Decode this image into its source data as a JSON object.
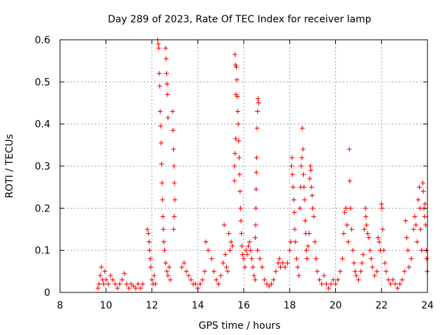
{
  "chart_data": {
    "type": "scatter",
    "title": "Day 289 of 2023, Rate Of TEC Index for receiver lamp",
    "xlabel": "GPS time / hours",
    "ylabel": "ROTI / TECUs",
    "xlim": [
      8,
      24
    ],
    "ylim": [
      0,
      0.6
    ],
    "xticks": [
      8,
      10,
      12,
      14,
      16,
      18,
      20,
      22,
      24
    ],
    "yticks": [
      0,
      0.1,
      0.2,
      0.3,
      0.4,
      0.5,
      0.6
    ],
    "xtick_labels": [
      "8",
      "10",
      "12",
      "14",
      "16",
      "18",
      "20",
      "22",
      "24"
    ],
    "ytick_labels": [
      "0",
      "0.1",
      "0.2",
      "0.3",
      "0.4",
      "0.5",
      "0.6"
    ],
    "grid": true,
    "marker": "+",
    "color": "#ff0000",
    "series": [
      {
        "name": "ROTI",
        "points": [
          [
            9.65,
            0.01
          ],
          [
            9.7,
            0.02
          ],
          [
            9.75,
            0.04
          ],
          [
            9.8,
            0.06
          ],
          [
            9.85,
            0.03
          ],
          [
            9.9,
            0.02
          ],
          [
            9.95,
            0.05
          ],
          [
            10.0,
            0.03
          ],
          [
            10.1,
            0.02
          ],
          [
            10.2,
            0.04
          ],
          [
            10.3,
            0.03
          ],
          [
            10.4,
            0.02
          ],
          [
            10.5,
            0.01
          ],
          [
            10.6,
            0.02
          ],
          [
            10.7,
            0.03
          ],
          [
            10.8,
            0.045
          ],
          [
            10.9,
            0.02
          ],
          [
            11.0,
            0.01
          ],
          [
            11.1,
            0.02
          ],
          [
            11.2,
            0.015
          ],
          [
            11.3,
            0.01
          ],
          [
            11.4,
            0.02
          ],
          [
            11.5,
            0.01
          ],
          [
            11.6,
            0.02
          ],
          [
            11.8,
            0.15
          ],
          [
            11.85,
            0.14
          ],
          [
            11.88,
            0.12
          ],
          [
            11.9,
            0.1
          ],
          [
            11.93,
            0.08
          ],
          [
            11.95,
            0.06
          ],
          [
            12.0,
            0.03
          ],
          [
            12.05,
            0.02
          ],
          [
            12.1,
            0.04
          ],
          [
            12.15,
            0.02
          ],
          [
            12.25,
            0.6
          ],
          [
            12.28,
            0.59
          ],
          [
            12.3,
            0.58
          ],
          [
            12.32,
            0.52
          ],
          [
            12.34,
            0.49
          ],
          [
            12.36,
            0.43
          ],
          [
            12.38,
            0.395
          ],
          [
            12.4,
            0.355
          ],
          [
            12.42,
            0.305
          ],
          [
            12.44,
            0.26
          ],
          [
            12.46,
            0.22
          ],
          [
            12.48,
            0.18
          ],
          [
            12.5,
            0.15
          ],
          [
            12.52,
            0.12
          ],
          [
            12.55,
            0.1
          ],
          [
            12.6,
            0.07
          ],
          [
            12.65,
            0.05
          ],
          [
            12.7,
            0.04
          ],
          [
            12.75,
            0.06
          ],
          [
            12.8,
            0.03
          ],
          [
            12.6,
            0.58
          ],
          [
            12.62,
            0.555
          ],
          [
            12.64,
            0.52
          ],
          [
            12.66,
            0.495
          ],
          [
            12.68,
            0.47
          ],
          [
            12.7,
            0.415
          ],
          [
            12.9,
            0.43
          ],
          [
            12.92,
            0.385
          ],
          [
            12.94,
            0.34
          ],
          [
            12.96,
            0.3
          ],
          [
            12.98,
            0.26
          ],
          [
            13.0,
            0.22
          ],
          [
            12.97,
            0.18
          ],
          [
            12.95,
            0.15
          ],
          [
            13.3,
            0.06
          ],
          [
            13.4,
            0.07
          ],
          [
            13.5,
            0.05
          ],
          [
            13.6,
            0.04
          ],
          [
            13.7,
            0.03
          ],
          [
            13.8,
            0.02
          ],
          [
            13.9,
            0.02
          ],
          [
            14.0,
            0.01
          ],
          [
            14.1,
            0.02
          ],
          [
            14.2,
            0.03
          ],
          [
            14.3,
            0.05
          ],
          [
            14.35,
            0.12
          ],
          [
            14.45,
            0.1
          ],
          [
            14.6,
            0.08
          ],
          [
            14.7,
            0.05
          ],
          [
            14.8,
            0.03
          ],
          [
            14.9,
            0.02
          ],
          [
            15.0,
            0.04
          ],
          [
            15.1,
            0.07
          ],
          [
            15.15,
            0.16
          ],
          [
            15.2,
            0.09
          ],
          [
            15.25,
            0.06
          ],
          [
            15.3,
            0.05
          ],
          [
            15.35,
            0.14
          ],
          [
            15.4,
            0.1
          ],
          [
            15.45,
            0.12
          ],
          [
            15.5,
            0.11
          ],
          [
            15.62,
            0.565
          ],
          [
            15.65,
            0.54
          ],
          [
            15.68,
            0.535
          ],
          [
            15.7,
            0.505
          ],
          [
            15.66,
            0.47
          ],
          [
            15.72,
            0.465
          ],
          [
            15.74,
            0.43
          ],
          [
            15.76,
            0.4
          ],
          [
            15.65,
            0.365
          ],
          [
            15.78,
            0.36
          ],
          [
            15.62,
            0.33
          ],
          [
            15.8,
            0.32
          ],
          [
            15.6,
            0.3
          ],
          [
            15.82,
            0.28
          ],
          [
            15.6,
            0.265
          ],
          [
            15.84,
            0.24
          ],
          [
            15.86,
            0.2
          ],
          [
            15.88,
            0.17
          ],
          [
            15.9,
            0.14
          ],
          [
            15.92,
            0.11
          ],
          [
            15.95,
            0.09
          ],
          [
            16.0,
            0.08
          ],
          [
            16.05,
            0.06
          ],
          [
            16.1,
            0.1
          ],
          [
            16.15,
            0.09
          ],
          [
            16.2,
            0.11
          ],
          [
            16.25,
            0.12
          ],
          [
            16.3,
            0.1
          ],
          [
            16.35,
            0.08
          ],
          [
            16.4,
            0.06
          ],
          [
            16.45,
            0.04
          ],
          [
            16.5,
            0.03
          ],
          [
            16.62,
            0.46
          ],
          [
            16.65,
            0.45
          ],
          [
            16.6,
            0.43
          ],
          [
            16.58,
            0.39
          ],
          [
            16.56,
            0.32
          ],
          [
            16.55,
            0.285
          ],
          [
            16.54,
            0.245
          ],
          [
            16.53,
            0.2
          ],
          [
            16.52,
            0.16
          ],
          [
            16.5,
            0.13
          ],
          [
            16.6,
            0.1
          ],
          [
            16.7,
            0.08
          ],
          [
            16.8,
            0.06
          ],
          [
            16.9,
            0.03
          ],
          [
            17.0,
            0.02
          ],
          [
            17.1,
            0.015
          ],
          [
            17.2,
            0.02
          ],
          [
            17.3,
            0.03
          ],
          [
            17.4,
            0.05
          ],
          [
            17.5,
            0.07
          ],
          [
            17.55,
            0.08
          ],
          [
            17.6,
            0.06
          ],
          [
            17.7,
            0.07
          ],
          [
            17.8,
            0.06
          ],
          [
            17.9,
            0.07
          ],
          [
            18.0,
            0.1
          ],
          [
            18.05,
            0.12
          ],
          [
            18.08,
            0.3
          ],
          [
            18.1,
            0.32
          ],
          [
            18.12,
            0.28
          ],
          [
            18.15,
            0.25
          ],
          [
            18.18,
            0.22
          ],
          [
            18.2,
            0.19
          ],
          [
            18.22,
            0.15
          ],
          [
            18.25,
            0.12
          ],
          [
            18.3,
            0.08
          ],
          [
            18.35,
            0.06
          ],
          [
            18.4,
            0.04
          ],
          [
            18.45,
            0.2
          ],
          [
            18.48,
            0.25
          ],
          [
            18.5,
            0.3
          ],
          [
            18.53,
            0.32
          ],
          [
            18.55,
            0.39
          ],
          [
            18.58,
            0.34
          ],
          [
            18.6,
            0.28
          ],
          [
            18.62,
            0.25
          ],
          [
            18.65,
            0.22
          ],
          [
            18.68,
            0.17
          ],
          [
            18.7,
            0.14
          ],
          [
            18.72,
            0.1
          ],
          [
            18.75,
            0.08
          ],
          [
            18.8,
            0.11
          ],
          [
            18.85,
            0.14
          ],
          [
            18.88,
            0.27
          ],
          [
            18.9,
            0.3
          ],
          [
            18.92,
            0.29
          ],
          [
            18.95,
            0.25
          ],
          [
            18.98,
            0.23
          ],
          [
            19.0,
            0.2
          ],
          [
            19.05,
            0.18
          ],
          [
            19.1,
            0.12
          ],
          [
            19.15,
            0.08
          ],
          [
            19.2,
            0.05
          ],
          [
            19.3,
            0.03
          ],
          [
            19.4,
            0.02
          ],
          [
            19.5,
            0.04
          ],
          [
            19.6,
            0.02
          ],
          [
            19.7,
            0.01
          ],
          [
            19.8,
            0.02
          ],
          [
            19.9,
            0.03
          ],
          [
            20.0,
            0.02
          ],
          [
            20.1,
            0.03
          ],
          [
            20.2,
            0.05
          ],
          [
            20.3,
            0.08
          ],
          [
            20.35,
            0.14
          ],
          [
            20.4,
            0.19
          ],
          [
            20.45,
            0.2
          ],
          [
            20.5,
            0.16
          ],
          [
            20.55,
            0.12
          ],
          [
            20.6,
            0.34
          ],
          [
            20.62,
            0.265
          ],
          [
            20.65,
            0.2
          ],
          [
            20.7,
            0.15
          ],
          [
            20.75,
            0.1
          ],
          [
            20.8,
            0.07
          ],
          [
            20.85,
            0.05
          ],
          [
            20.9,
            0.04
          ],
          [
            21.0,
            0.03
          ],
          [
            21.1,
            0.05
          ],
          [
            21.15,
            0.07
          ],
          [
            21.2,
            0.09
          ],
          [
            21.25,
            0.15
          ],
          [
            21.3,
            0.2
          ],
          [
            21.32,
            0.18
          ],
          [
            21.35,
            0.16
          ],
          [
            21.4,
            0.14
          ],
          [
            21.45,
            0.13
          ],
          [
            21.5,
            0.1
          ],
          [
            21.55,
            0.08
          ],
          [
            21.6,
            0.06
          ],
          [
            21.7,
            0.04
          ],
          [
            21.8,
            0.05
          ],
          [
            21.85,
            0.13
          ],
          [
            21.9,
            0.12
          ],
          [
            21.95,
            0.1
          ],
          [
            22.0,
            0.21
          ],
          [
            22.02,
            0.2
          ],
          [
            22.05,
            0.15
          ],
          [
            22.1,
            0.1
          ],
          [
            22.15,
            0.07
          ],
          [
            22.2,
            0.05
          ],
          [
            22.3,
            0.03
          ],
          [
            22.4,
            0.02
          ],
          [
            22.5,
            0.03
          ],
          [
            22.6,
            0.02
          ],
          [
            22.7,
            0.01
          ],
          [
            22.8,
            0.02
          ],
          [
            22.9,
            0.03
          ],
          [
            23.0,
            0.05
          ],
          [
            23.05,
            0.17
          ],
          [
            23.1,
            0.13
          ],
          [
            23.15,
            0.1
          ],
          [
            23.2,
            0.06
          ],
          [
            23.3,
            0.08
          ],
          [
            23.4,
            0.15
          ],
          [
            23.45,
            0.18
          ],
          [
            23.5,
            0.16
          ],
          [
            23.55,
            0.12
          ],
          [
            23.6,
            0.22
          ],
          [
            23.65,
            0.25
          ],
          [
            23.68,
            0.2
          ],
          [
            23.7,
            0.15
          ],
          [
            23.75,
            0.1
          ],
          [
            23.8,
            0.26
          ],
          [
            23.82,
            0.24
          ],
          [
            23.85,
            0.2
          ],
          [
            23.88,
            0.18
          ],
          [
            23.9,
            0.21
          ],
          [
            23.92,
            0.16
          ],
          [
            23.95,
            0.1
          ],
          [
            23.97,
            0.08
          ],
          [
            23.99,
            0.05
          ]
        ]
      }
    ]
  }
}
